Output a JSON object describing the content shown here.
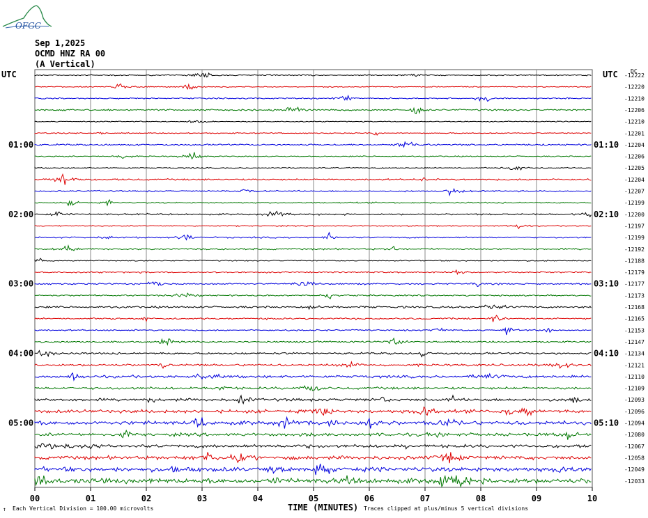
{
  "header": {
    "date": "Sep 1,2025",
    "station": "OCMD HNZ RA 00",
    "component": "(A Vertical)"
  },
  "logo": {
    "text": "OFGC"
  },
  "footer": {
    "scale_note": "Each Vertical Division =  100.00 microvolts",
    "clip_note": "Traces clipped at plus/minus 5 vertical divisions"
  },
  "chart_data": {
    "type": "line",
    "title": "",
    "xlabel": "TIME (MINUTES)",
    "x_ticks": [
      "00",
      "01",
      "02",
      "03",
      "04",
      "05",
      "06",
      "07",
      "08",
      "09",
      "10"
    ],
    "xlim": [
      0,
      10
    ],
    "left_axis_label": "UTC",
    "right_axis_label": "UTC",
    "right_top_label": "DC",
    "left_time_labels": [
      {
        "row": 6,
        "label": "01:00"
      },
      {
        "row": 12,
        "label": "02:00"
      },
      {
        "row": 18,
        "label": "03:00"
      },
      {
        "row": 24,
        "label": "04:00"
      },
      {
        "row": 30,
        "label": "05:00"
      }
    ],
    "right_time_labels": [
      {
        "row": 6,
        "label": "01:10"
      },
      {
        "row": 12,
        "label": "02:10"
      },
      {
        "row": 18,
        "label": "03:10"
      },
      {
        "row": 24,
        "label": "04:10"
      },
      {
        "row": 30,
        "label": "05:10"
      }
    ],
    "trace_colors": [
      "#000000",
      "#dd0000",
      "#0000dd",
      "#007700"
    ],
    "traces": [
      {
        "dc": "-12222",
        "activity": 0.3
      },
      {
        "dc": "-12220",
        "activity": 0.3
      },
      {
        "dc": "-12210",
        "activity": 0.4
      },
      {
        "dc": "-12206",
        "activity": 0.6
      },
      {
        "dc": "-12210",
        "activity": 0.2
      },
      {
        "dc": "-12201",
        "activity": 0.3
      },
      {
        "dc": "-12204",
        "activity": 0.6
      },
      {
        "dc": "-12206",
        "activity": 0.3
      },
      {
        "dc": "-12205",
        "activity": 0.3
      },
      {
        "dc": "-12204",
        "activity": 0.6
      },
      {
        "dc": "-12207",
        "activity": 0.5
      },
      {
        "dc": "-12199",
        "activity": 0.4
      },
      {
        "dc": "-12200",
        "activity": 0.6
      },
      {
        "dc": "-12197",
        "activity": 0.3
      },
      {
        "dc": "-12199",
        "activity": 0.5
      },
      {
        "dc": "-12192",
        "activity": 0.6
      },
      {
        "dc": "-12188",
        "activity": 0.3
      },
      {
        "dc": "-12179",
        "activity": 0.5
      },
      {
        "dc": "-12177",
        "activity": 0.6
      },
      {
        "dc": "-12173",
        "activity": 0.5
      },
      {
        "dc": "-12168",
        "activity": 0.8
      },
      {
        "dc": "-12165",
        "activity": 0.6
      },
      {
        "dc": "-12153",
        "activity": 0.5
      },
      {
        "dc": "-12147",
        "activity": 0.6
      },
      {
        "dc": "-12134",
        "activity": 0.8
      },
      {
        "dc": "-12121",
        "activity": 0.9
      },
      {
        "dc": "-12110",
        "activity": 1.2
      },
      {
        "dc": "-12109",
        "activity": 1.1
      },
      {
        "dc": "-12093",
        "activity": 1.3
      },
      {
        "dc": "-12096",
        "activity": 1.6
      },
      {
        "dc": "-12094",
        "activity": 2.0
      },
      {
        "dc": "-12080",
        "activity": 1.5
      },
      {
        "dc": "-12067",
        "activity": 1.5
      },
      {
        "dc": "-12058",
        "activity": 1.8
      },
      {
        "dc": "-12049",
        "activity": 2.3
      },
      {
        "dc": "-12033",
        "activity": 2.6
      }
    ]
  }
}
